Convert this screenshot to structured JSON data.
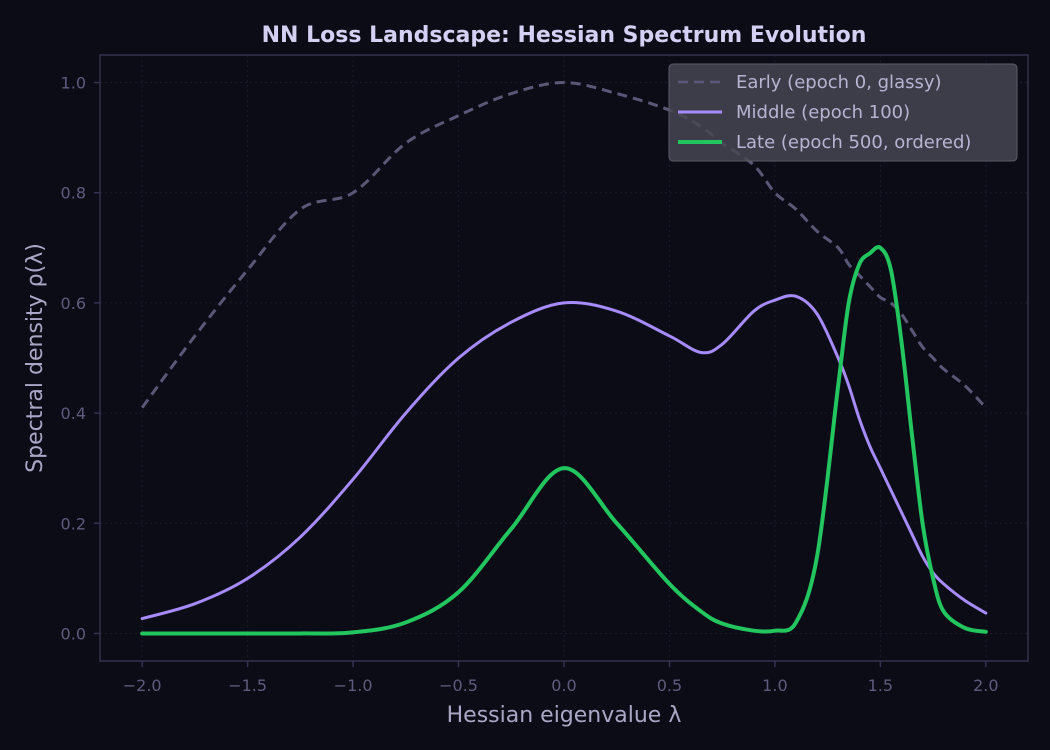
{
  "chart_data": {
    "type": "line",
    "title": "NN Loss Landscape: Hessian Spectrum Evolution",
    "xlabel": "Hessian eigenvalue λ",
    "ylabel": "Spectral density ρ(λ)",
    "xlim": [
      -2.2,
      2.2
    ],
    "ylim": [
      -0.05,
      1.05
    ],
    "xticks": [
      -2.0,
      -1.5,
      -1.0,
      -0.5,
      0.0,
      0.5,
      1.0,
      1.5,
      2.0
    ],
    "xtick_labels": [
      "−2.0",
      "−1.5",
      "−1.0",
      "−0.5",
      "0.0",
      "0.5",
      "1.0",
      "1.5",
      "2.0"
    ],
    "yticks": [
      0.0,
      0.2,
      0.4,
      0.6,
      0.8,
      1.0
    ],
    "ytick_labels": [
      "0.0",
      "0.2",
      "0.4",
      "0.6",
      "0.8",
      "1.0"
    ],
    "grid": true,
    "legend_position": "top-right",
    "colors": {
      "background": "#0c0c17",
      "early": "#5a5878",
      "middle": "#a78bfa",
      "late": "#22c55e",
      "axis": "#34324f",
      "grid": "#1a1a2c",
      "legend_bg": "#474752"
    },
    "x": [
      -2.0,
      -1.75,
      -1.5,
      -1.25,
      -1.0,
      -0.75,
      -0.5,
      -0.25,
      0.0,
      0.25,
      0.5,
      0.65,
      0.75,
      0.9,
      1.0,
      1.1,
      1.2,
      1.3,
      1.35,
      1.4,
      1.45,
      1.5,
      1.55,
      1.6,
      1.65,
      1.7,
      1.75,
      1.8,
      1.9,
      2.0
    ],
    "series": [
      {
        "name": "Early (epoch 0, glassy)",
        "style": "dashed",
        "values": [
          0.41,
          0.54,
          0.66,
          0.77,
          0.8,
          0.89,
          0.94,
          0.98,
          1.0,
          0.98,
          0.95,
          0.92,
          0.89,
          0.85,
          0.8,
          0.77,
          0.73,
          0.7,
          0.67,
          0.65,
          0.63,
          0.61,
          0.6,
          0.58,
          0.55,
          0.52,
          0.5,
          0.48,
          0.45,
          0.41
        ]
      },
      {
        "name": "Middle (epoch 100)",
        "style": "solid",
        "values": [
          0.027,
          0.054,
          0.1,
          0.175,
          0.28,
          0.4,
          0.5,
          0.565,
          0.6,
          0.585,
          0.54,
          0.51,
          0.525,
          0.585,
          0.605,
          0.612,
          0.58,
          0.5,
          0.45,
          0.39,
          0.34,
          0.3,
          0.26,
          0.22,
          0.18,
          0.14,
          0.11,
          0.09,
          0.06,
          0.037
        ]
      },
      {
        "name": "Late (epoch 500, ordered)",
        "style": "solid",
        "values": [
          0.0,
          0.0,
          0.0,
          0.0,
          0.002,
          0.02,
          0.075,
          0.19,
          0.3,
          0.2,
          0.09,
          0.04,
          0.018,
          0.005,
          0.005,
          0.02,
          0.14,
          0.45,
          0.6,
          0.67,
          0.69,
          0.7,
          0.66,
          0.53,
          0.36,
          0.2,
          0.1,
          0.04,
          0.01,
          0.003
        ]
      }
    ]
  }
}
